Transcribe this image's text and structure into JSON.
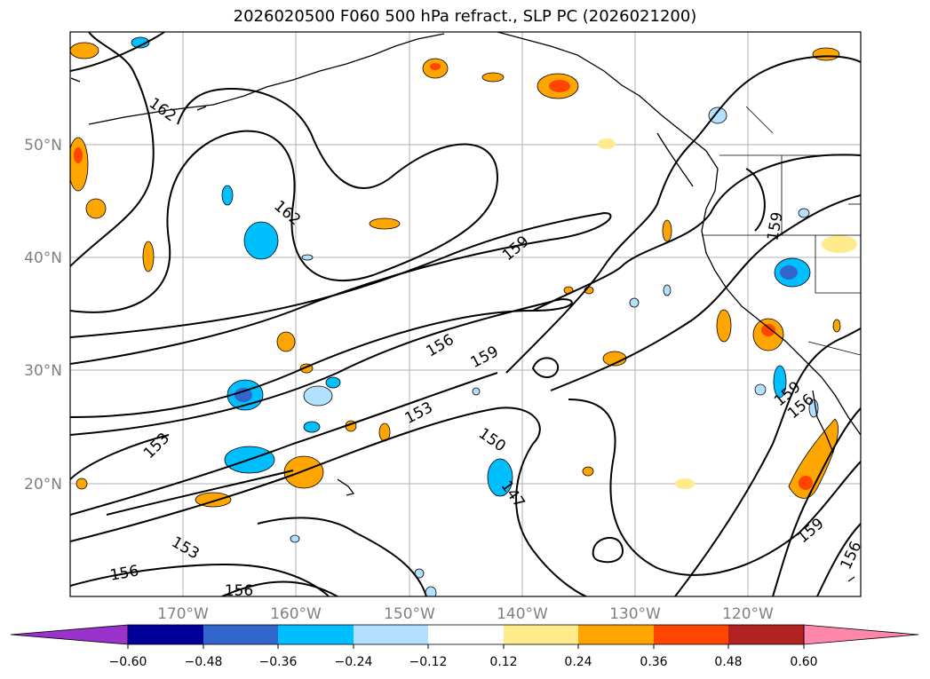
{
  "title": "2026020500 F060 500 hPa refract., SLP PC (2026021200)",
  "lon_labels": [
    "170°W",
    "160°W",
    "150°W",
    "140°W",
    "130°W",
    "120°W"
  ],
  "lat_labels": [
    "50°N",
    "40°N",
    "30°N",
    "20°N"
  ],
  "contour_labels": [
    "162",
    "162",
    "159",
    "156",
    "159",
    "153",
    "150",
    "147",
    "153",
    "153",
    "156",
    "156",
    "159",
    "159",
    "156",
    "159",
    "156"
  ],
  "colorbar": {
    "ticks": [
      "−0.60",
      "−0.48",
      "−0.36",
      "−0.24",
      "−0.12",
      "0.12",
      "0.24",
      "0.36",
      "0.48",
      "0.60"
    ],
    "colors": [
      "#9933cc",
      "#000099",
      "#3366cc",
      "#00bfff",
      "#b3e0ff",
      "#ffffff",
      "#ffeb8c",
      "#ffa500",
      "#ff4500",
      "#b22222",
      "#ff88aa"
    ]
  }
}
